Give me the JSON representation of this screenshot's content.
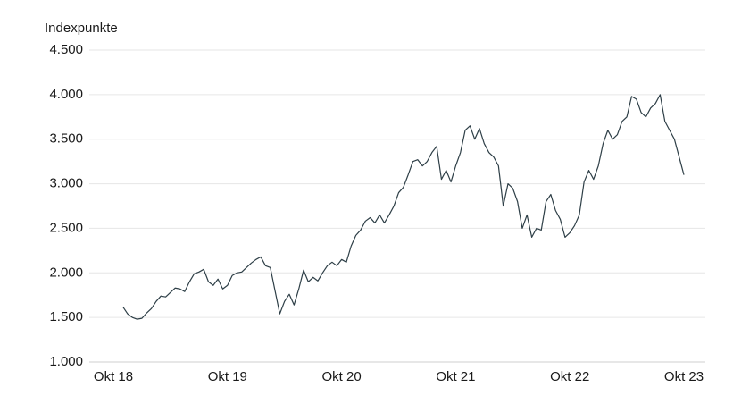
{
  "chart_data": {
    "type": "line",
    "y_label": "Indexpunkte",
    "categories": [
      "Okt 18",
      null,
      null,
      null,
      null,
      null,
      null,
      null,
      null,
      null,
      null,
      null,
      null,
      null,
      null,
      null,
      null,
      null,
      null,
      null,
      null,
      null,
      null,
      null,
      "Okt 19",
      null,
      null,
      null,
      null,
      null,
      null,
      null,
      null,
      null,
      null,
      null,
      null,
      null,
      null,
      null,
      null,
      null,
      null,
      null,
      null,
      null,
      null,
      null,
      "Okt 20",
      null,
      null,
      null,
      null,
      null,
      null,
      null,
      null,
      null,
      null,
      null,
      null,
      null,
      null,
      null,
      null,
      null,
      null,
      null,
      null,
      null,
      null,
      null,
      "Okt 21",
      null,
      null,
      null,
      null,
      null,
      null,
      null,
      null,
      null,
      null,
      null,
      null,
      null,
      null,
      null,
      null,
      null,
      null,
      null,
      null,
      null,
      null,
      null,
      "Okt 22",
      null,
      null,
      null,
      null,
      null,
      null,
      null,
      null,
      null,
      null,
      null,
      null,
      null,
      null,
      null,
      null,
      null,
      null,
      null,
      null,
      null,
      null,
      null,
      "Okt 23"
    ],
    "series": [
      {
        "color": "#2e3f47",
        "values": [
          null,
          null,
          1620,
          1540,
          1500,
          1480,
          1490,
          1550,
          1600,
          1680,
          1740,
          1730,
          1780,
          1830,
          1820,
          1790,
          1900,
          1990,
          2010,
          2040,
          1900,
          1860,
          1930,
          1820,
          1860,
          1970,
          2000,
          2010,
          2060,
          2110,
          2150,
          2180,
          2080,
          2060,
          1800,
          1540,
          1680,
          1760,
          1640,
          1820,
          2030,
          1900,
          1950,
          1910,
          2000,
          2080,
          2120,
          2080,
          2150,
          2120,
          2300,
          2420,
          2480,
          2580,
          2620,
          2560,
          2650,
          2560,
          2650,
          2750,
          2900,
          2960,
          3100,
          3250,
          3270,
          3200,
          3250,
          3350,
          3420,
          3050,
          3150,
          3020,
          3200,
          3350,
          3600,
          3650,
          3500,
          3620,
          3450,
          3350,
          3300,
          3200,
          2750,
          3000,
          2950,
          2800,
          2500,
          2650,
          2400,
          2500,
          2480,
          2800,
          2880,
          2700,
          2600,
          2400,
          2450,
          2530,
          2650,
          3020,
          3150,
          3050,
          3200,
          3450,
          3600,
          3500,
          3550,
          3700,
          3750,
          3980,
          3950,
          3800,
          3750,
          3850,
          3900,
          4000,
          3700,
          3600,
          3500,
          3300,
          3100
        ]
      }
    ],
    "ylim": [
      1000,
      4500
    ],
    "yticks": [
      {
        "value": 1000,
        "label": "1.000"
      },
      {
        "value": 1500,
        "label": "1.500"
      },
      {
        "value": 2000,
        "label": "2.000"
      },
      {
        "value": 2500,
        "label": "2.500"
      },
      {
        "value": 3000,
        "label": "3.000"
      },
      {
        "value": 3500,
        "label": "3.500"
      },
      {
        "value": 4000,
        "label": "4.000"
      },
      {
        "value": 4500,
        "label": "4.500"
      }
    ],
    "grid": true
  }
}
